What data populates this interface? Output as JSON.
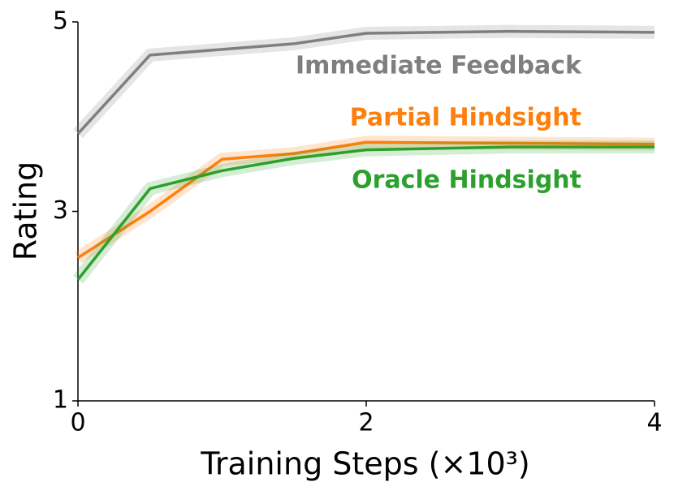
{
  "chart_data": {
    "type": "line",
    "xlabel": "Training Steps (×10³)",
    "ylabel": "Rating",
    "x": [
      0,
      0.5,
      1,
      1.5,
      2,
      3,
      4
    ],
    "series": [
      {
        "name": "Immediate Feedback",
        "color": "#7f7f7f",
        "values": [
          3.82,
          4.65,
          4.71,
          4.77,
          4.88,
          4.9,
          4.89
        ]
      },
      {
        "name": "Partial Hindsight",
        "color": "#ff7f0e",
        "values": [
          2.51,
          3.0,
          3.55,
          3.61,
          3.73,
          3.72,
          3.71
        ]
      },
      {
        "name": "Oracle Hindsight",
        "color": "#2ca02c",
        "values": [
          2.28,
          3.24,
          3.43,
          3.56,
          3.65,
          3.68,
          3.68
        ]
      }
    ],
    "xlim": [
      0,
      4
    ],
    "xticks": [
      0,
      2,
      4
    ],
    "ylim": [
      1,
      5
    ],
    "yticks": [
      1,
      3,
      5
    ],
    "grid": false
  }
}
